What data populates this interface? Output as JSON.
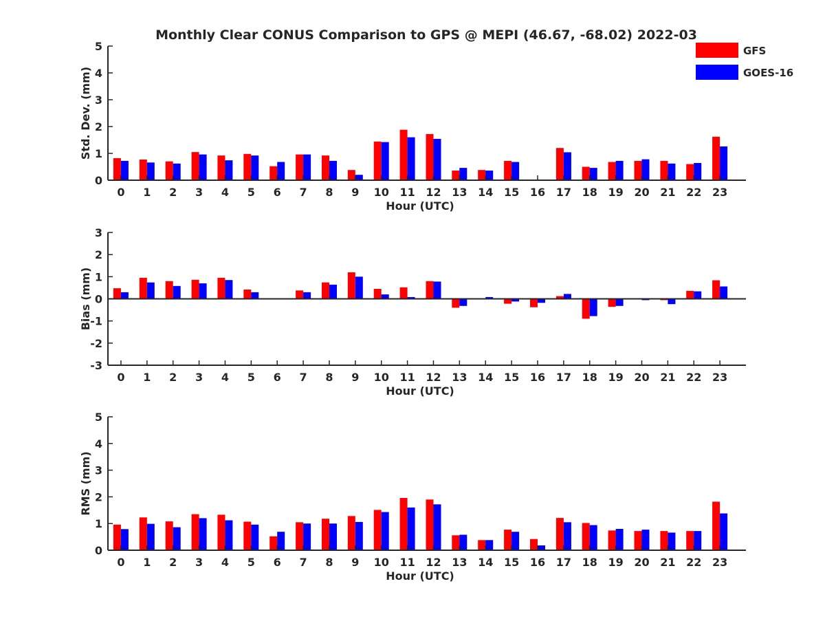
{
  "chart_data": {
    "type": "bar",
    "title": "Monthly Clear CONUS Comparison to GPS @ MEPI (46.67, -68.02) 2022-03",
    "legend": {
      "placement": "top-right",
      "entries": [
        {
          "name": "GFS",
          "color": "#ff0000"
        },
        {
          "name": "GOES-16",
          "color": "#0000ff"
        }
      ]
    },
    "categories": [
      "0",
      "1",
      "2",
      "3",
      "4",
      "5",
      "6",
      "7",
      "8",
      "9",
      "10",
      "11",
      "12",
      "13",
      "14",
      "15",
      "16",
      "17",
      "18",
      "19",
      "20",
      "21",
      "22",
      "23"
    ],
    "panels": [
      {
        "ylabel": "Std. Dev. (mm)",
        "xlabel": "Hour (UTC)",
        "ylim": [
          0,
          5
        ],
        "yticks": [
          "0",
          "1",
          "2",
          "3",
          "4",
          "5"
        ],
        "series": [
          {
            "name": "GFS",
            "values": [
              0.82,
              0.77,
              0.7,
              1.05,
              0.92,
              0.98,
              0.52,
              0.96,
              0.92,
              0.38,
              1.44,
              1.88,
              1.72,
              0.36,
              0.38,
              0.72,
              0.0,
              1.2,
              0.5,
              0.68,
              0.72,
              0.72,
              0.6,
              1.62
            ]
          },
          {
            "name": "GOES-16",
            "values": [
              0.72,
              0.66,
              0.62,
              0.96,
              0.74,
              0.92,
              0.68,
              0.96,
              0.72,
              0.2,
              1.42,
              1.6,
              1.54,
              0.46,
              0.36,
              0.68,
              0.0,
              1.04,
              0.46,
              0.72,
              0.78,
              0.62,
              0.64,
              1.26
            ]
          }
        ]
      },
      {
        "ylabel": "Bias (mm)",
        "xlabel": "Hour (UTC)",
        "ylim": [
          -3,
          3
        ],
        "yticks": [
          "-3",
          "-2",
          "-1",
          "0",
          "1",
          "2",
          "3"
        ],
        "series": [
          {
            "name": "GFS",
            "values": [
              0.48,
              0.95,
              0.8,
              0.86,
              0.95,
              0.42,
              0.02,
              0.38,
              0.74,
              1.2,
              0.45,
              0.52,
              0.8,
              -0.4,
              0.0,
              -0.22,
              -0.38,
              0.12,
              -0.9,
              -0.36,
              0.02,
              -0.06,
              0.36,
              0.84
            ]
          },
          {
            "name": "GOES-16",
            "values": [
              0.3,
              0.74,
              0.58,
              0.7,
              0.85,
              0.3,
              -0.03,
              0.3,
              0.64,
              1.0,
              0.2,
              0.08,
              0.78,
              -0.32,
              0.08,
              -0.12,
              -0.18,
              0.22,
              -0.78,
              -0.32,
              -0.06,
              -0.24,
              0.34,
              0.56
            ]
          }
        ]
      },
      {
        "ylabel": "RMS (mm)",
        "xlabel": "Hour (UTC)",
        "ylim": [
          0,
          5
        ],
        "yticks": [
          "0",
          "1",
          "2",
          "3",
          "4",
          "5"
        ],
        "series": [
          {
            "name": "GFS",
            "values": [
              0.96,
              1.23,
              1.08,
              1.35,
              1.33,
              1.07,
              0.52,
              1.05,
              1.18,
              1.28,
              1.51,
              1.96,
              1.9,
              0.56,
              0.38,
              0.77,
              0.42,
              1.21,
              1.02,
              0.74,
              0.72,
              0.72,
              0.72,
              1.82
            ]
          },
          {
            "name": "GOES-16",
            "values": [
              0.79,
              0.99,
              0.86,
              1.2,
              1.12,
              0.96,
              0.69,
              1.0,
              1.0,
              1.06,
              1.43,
              1.6,
              1.72,
              0.58,
              0.38,
              0.69,
              0.18,
              1.05,
              0.94,
              0.8,
              0.77,
              0.66,
              0.72,
              1.38
            ]
          }
        ]
      }
    ]
  }
}
